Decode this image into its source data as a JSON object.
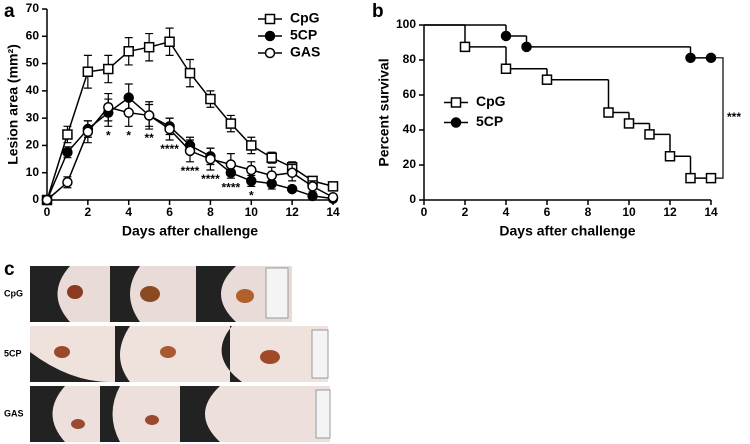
{
  "chart_data": [
    {
      "type": "line",
      "panel_label": "a",
      "xlabel": "Days after challenge",
      "ylabel": "Lesion area (mm²)",
      "x": [
        0,
        1,
        2,
        3,
        4,
        5,
        6,
        7,
        8,
        9,
        10,
        11,
        12,
        13,
        14
      ],
      "xlim": [
        0,
        14
      ],
      "xticks": [
        0,
        2,
        4,
        6,
        8,
        10,
        12,
        14
      ],
      "ylim": [
        0,
        70
      ],
      "yticks": [
        0,
        10,
        20,
        30,
        40,
        50,
        60,
        70
      ],
      "legend": "upper right",
      "series": [
        {
          "name": "CpG",
          "color": "#000000",
          "marker": "square-open",
          "values": [
            0,
            24,
            47,
            48,
            54.5,
            56,
            58,
            46.5,
            37,
            28,
            20,
            15.5,
            12,
            7,
            5
          ],
          "errors": [
            0,
            3,
            6,
            5,
            5,
            5,
            5,
            5,
            3,
            3,
            3,
            2,
            2,
            1,
            1
          ]
        },
        {
          "name": "5CP",
          "color": "#000000",
          "marker": "circle-filled",
          "values": [
            0,
            17.5,
            26,
            32,
            37.5,
            31,
            27,
            20,
            16,
            10,
            7,
            6,
            4,
            1.5,
            0.5
          ],
          "errors": [
            0,
            2,
            3,
            5,
            5,
            4,
            3,
            3,
            3,
            2,
            2,
            2,
            1,
            1,
            0.5
          ]
        },
        {
          "name": "GAS",
          "color": "#000000",
          "marker": "circle-open",
          "values": [
            0,
            6.5,
            25,
            34,
            32,
            31,
            26,
            18,
            15,
            13,
            11,
            9,
            10,
            5,
            1
          ],
          "errors": [
            0,
            2,
            4,
            5,
            5,
            5,
            4,
            4,
            4,
            4,
            3,
            3,
            3,
            2,
            1
          ]
        }
      ],
      "significance": [
        null,
        null,
        null,
        "*",
        "*",
        "**",
        "****",
        "****",
        "****",
        "****",
        "*",
        null,
        null,
        null,
        null
      ]
    },
    {
      "type": "survival",
      "panel_label": "b",
      "xlabel": "Days after challenge",
      "ylabel": "Percent survival",
      "xlim": [
        0,
        14
      ],
      "xticks": [
        0,
        2,
        4,
        6,
        8,
        10,
        12,
        14
      ],
      "ylim": [
        0,
        100
      ],
      "yticks": [
        0,
        20,
        40,
        60,
        80,
        100
      ],
      "legend": "center left",
      "series": [
        {
          "name": "CpG",
          "color": "#000000",
          "marker": "square-open",
          "x": [
            0,
            2,
            4,
            6,
            9,
            10,
            11,
            12,
            13,
            14
          ],
          "values": [
            100,
            87.5,
            75,
            68.75,
            50,
            43.75,
            37.5,
            25,
            12.5,
            12.5
          ]
        },
        {
          "name": "5CP",
          "color": "#000000",
          "marker": "circle-filled",
          "x": [
            0,
            4,
            5,
            13,
            14
          ],
          "values": [
            100,
            93.75,
            87.5,
            81.25,
            81.25
          ]
        }
      ],
      "annotation": "***"
    }
  ],
  "photos": {
    "panel_label": "c",
    "rows": [
      "CpG",
      "5CP",
      "GAS"
    ]
  }
}
